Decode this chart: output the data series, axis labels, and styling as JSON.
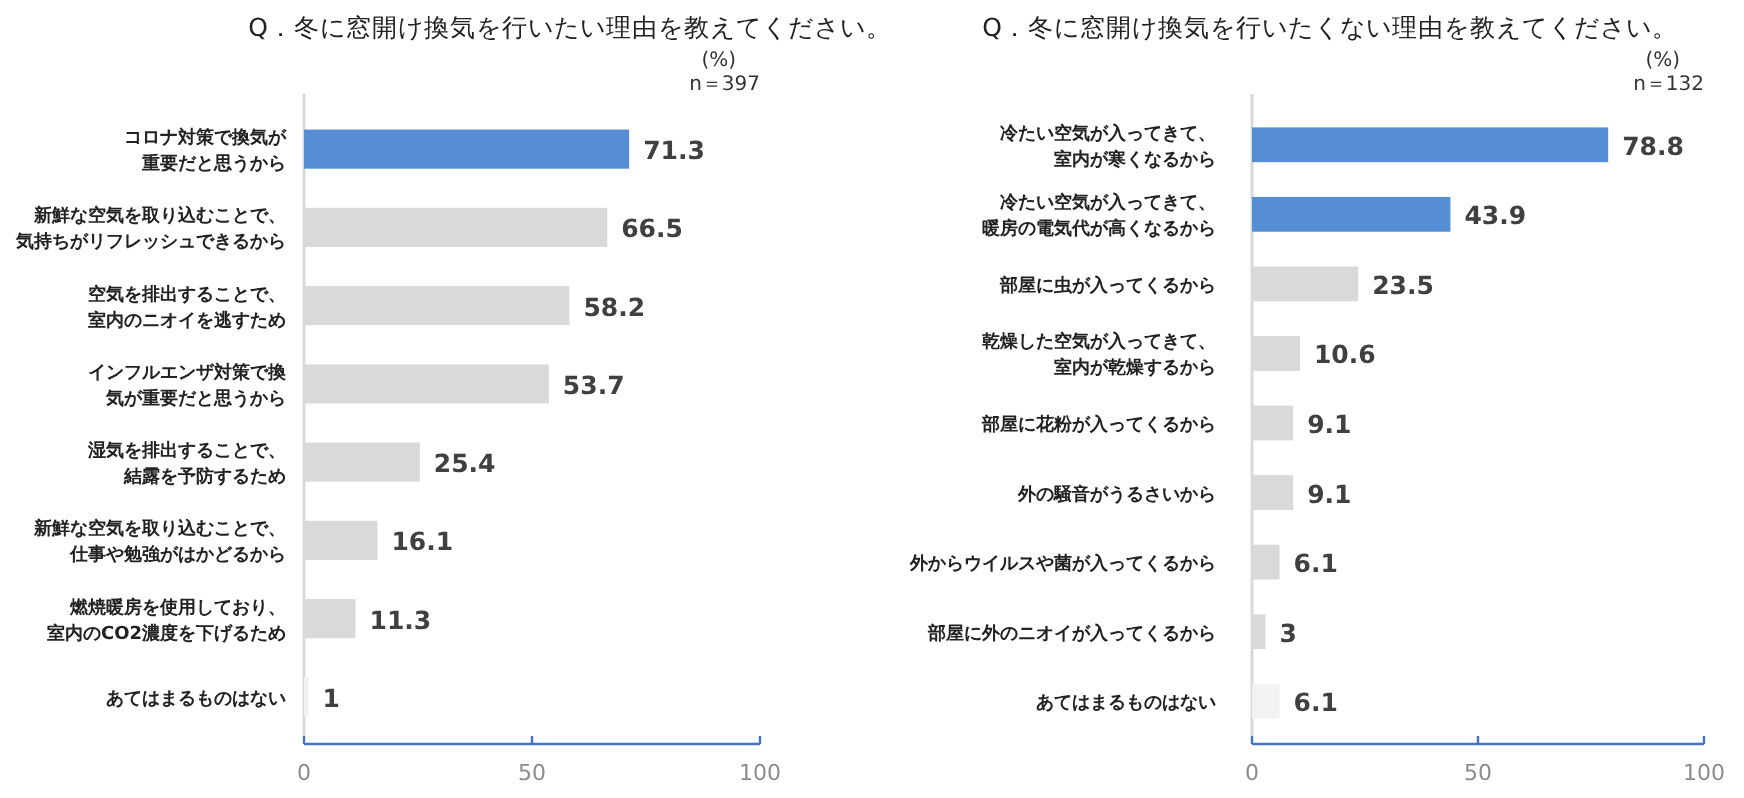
{
  "chart_data": [
    {
      "type": "bar",
      "orientation": "horizontal",
      "title": "Q．冬に窓開け換気を行いたい理由を教えてください。",
      "annotations": [
        "(%)",
        "n＝397"
      ],
      "categories": [
        "コロナ対策で換気が重要だと思うから",
        "新鮮な空気を取り込むことで、気持ちがリフレッシュできるから",
        "空気を排出することで、室内のニオイを逃すため",
        "インフルエンザ対策で換気が重要だと思うから",
        "湿気を排出することで、結露を予防するため",
        "新鮮な空気を取り込むことで、仕事や勉強がはかどるから",
        "燃焼暖房を使用しており、室内のCO2濃度を下げるため",
        "あてはまるものはない"
      ],
      "values": [
        71.3,
        66.5,
        58.2,
        53.7,
        25.4,
        16.1,
        11.3,
        1
      ],
      "colors": [
        "#558ed5",
        "#d9d9d9",
        "#d9d9d9",
        "#d9d9d9",
        "#d9d9d9",
        "#d9d9d9",
        "#d9d9d9",
        "#f2f2f2"
      ],
      "xlim": [
        0,
        100
      ],
      "xticks": [
        0,
        50,
        100
      ],
      "data_labels": true
    },
    {
      "type": "bar",
      "orientation": "horizontal",
      "title": "Q．冬に窓開け換気を行いたくない理由を教えてください。",
      "annotations": [
        "(%)",
        "n＝132"
      ],
      "categories": [
        "冷たい空気が入ってきて、室内が寒くなるから",
        "冷たい空気が入ってきて、暖房の電気代が高くなるから",
        "部屋に虫が入ってくるから",
        "乾燥した空気が入ってきて、室内が乾燥するから",
        "部屋に花粉が入ってくるから",
        "外の騒音がうるさいから",
        "外からウイルスや菌が入ってくるから",
        "部屋に外のニオイが入ってくるから",
        "あてはまるものはない"
      ],
      "values": [
        78.8,
        43.9,
        23.5,
        10.6,
        9.1,
        9.1,
        6.1,
        3,
        6.1
      ],
      "colors": [
        "#558ed5",
        "#558ed5",
        "#d9d9d9",
        "#d9d9d9",
        "#d9d9d9",
        "#d9d9d9",
        "#d9d9d9",
        "#d9d9d9",
        "#f2f2f2"
      ],
      "xlim": [
        0,
        100
      ],
      "xticks": [
        0,
        50,
        100
      ],
      "data_labels": true
    }
  ]
}
